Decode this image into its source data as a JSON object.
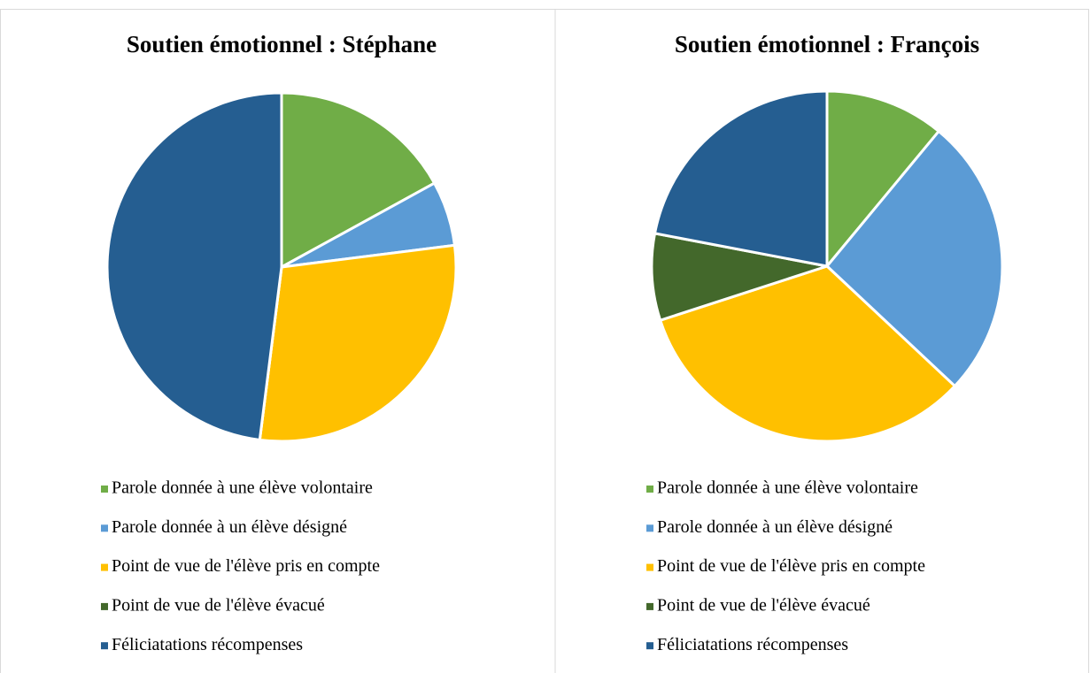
{
  "chart_data": [
    {
      "type": "pie",
      "title": "Soutien émotionnel : Stéphane",
      "categories": [
        "Parole donnée à une élève volontaire",
        "Parole donnée à un élève désigné",
        "Point de vue de l'élève pris en compte",
        "Point de vue de l'élève évacué",
        "Féliciatations récompenses"
      ],
      "values": [
        17,
        6,
        29,
        0,
        48
      ],
      "colors": [
        "#70ad47",
        "#5b9bd5",
        "#ffc000",
        "#43682b",
        "#255e91"
      ]
    },
    {
      "type": "pie",
      "title": "Soutien émotionnel : François",
      "categories": [
        "Parole donnée à une élève volontaire",
        "Parole donnée à un élève désigné",
        "Point de vue de l'élève pris en compte",
        "Point de vue de l'élève évacué",
        "Féliciatations récompenses"
      ],
      "values": [
        11,
        26,
        33,
        8,
        22
      ],
      "colors": [
        "#70ad47",
        "#5b9bd5",
        "#ffc000",
        "#43682b",
        "#255e91"
      ]
    }
  ]
}
